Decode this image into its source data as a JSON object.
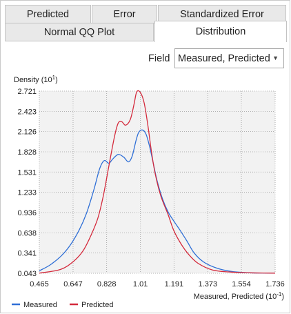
{
  "tabs": {
    "row1": [
      "Predicted",
      "Error",
      "Standardized Error"
    ],
    "row2": [
      "Normal QQ Plot",
      "Distribution"
    ],
    "active": "Distribution"
  },
  "field": {
    "label": "Field",
    "value": "Measured, Predicted"
  },
  "chart_data": {
    "type": "line",
    "ylabel": "Density (10",
    "ylabel_exp": "1",
    "ylabel_tail": ")",
    "xlabel": "Measured, Predicted (10",
    "xlabel_exp": "-1",
    "xlabel_tail": ")",
    "xlim": [
      0.465,
      1.736
    ],
    "ylim": [
      0.043,
      2.721
    ],
    "x_ticks": [
      "0.465",
      "0.647",
      "0.828",
      "1.01",
      "1.191",
      "1.373",
      "1.554",
      "1.736"
    ],
    "y_ticks": [
      "2.721",
      "2.423",
      "2.126",
      "1.828",
      "1.531",
      "1.233",
      "0.936",
      "0.638",
      "0.341",
      "0.043"
    ],
    "grid": true,
    "legend_position": "bottom-left",
    "series": [
      {
        "name": "Measured",
        "color": "#2f6fd6",
        "x": [
          0.465,
          0.52,
          0.58,
          0.63,
          0.68,
          0.72,
          0.76,
          0.79,
          0.815,
          0.84,
          0.86,
          0.89,
          0.92,
          0.945,
          0.965,
          0.985,
          1.0,
          1.02,
          1.04,
          1.06,
          1.08,
          1.1,
          1.13,
          1.16,
          1.19,
          1.22,
          1.26,
          1.3,
          1.35,
          1.42,
          1.5,
          1.6,
          1.736
        ],
        "y": [
          0.08,
          0.16,
          0.29,
          0.45,
          0.68,
          0.93,
          1.28,
          1.58,
          1.7,
          1.66,
          1.72,
          1.79,
          1.75,
          1.68,
          1.76,
          1.98,
          2.11,
          2.15,
          2.09,
          1.9,
          1.65,
          1.4,
          1.13,
          0.94,
          0.81,
          0.69,
          0.52,
          0.34,
          0.21,
          0.12,
          0.07,
          0.05,
          0.045
        ]
      },
      {
        "name": "Predicted",
        "color": "#d42a3c",
        "x": [
          0.465,
          0.58,
          0.65,
          0.7,
          0.74,
          0.78,
          0.81,
          0.84,
          0.87,
          0.89,
          0.91,
          0.93,
          0.955,
          0.975,
          0.99,
          1.01,
          1.03,
          1.05,
          1.07,
          1.09,
          1.12,
          1.16,
          1.19,
          1.23,
          1.27,
          1.32,
          1.4,
          1.5,
          1.6,
          1.736
        ],
        "y": [
          0.045,
          0.1,
          0.22,
          0.37,
          0.58,
          0.85,
          1.18,
          1.62,
          2.05,
          2.25,
          2.27,
          2.22,
          2.3,
          2.52,
          2.71,
          2.7,
          2.55,
          2.22,
          1.82,
          1.5,
          1.18,
          0.9,
          0.67,
          0.47,
          0.32,
          0.19,
          0.09,
          0.06,
          0.05,
          0.045
        ]
      }
    ]
  }
}
